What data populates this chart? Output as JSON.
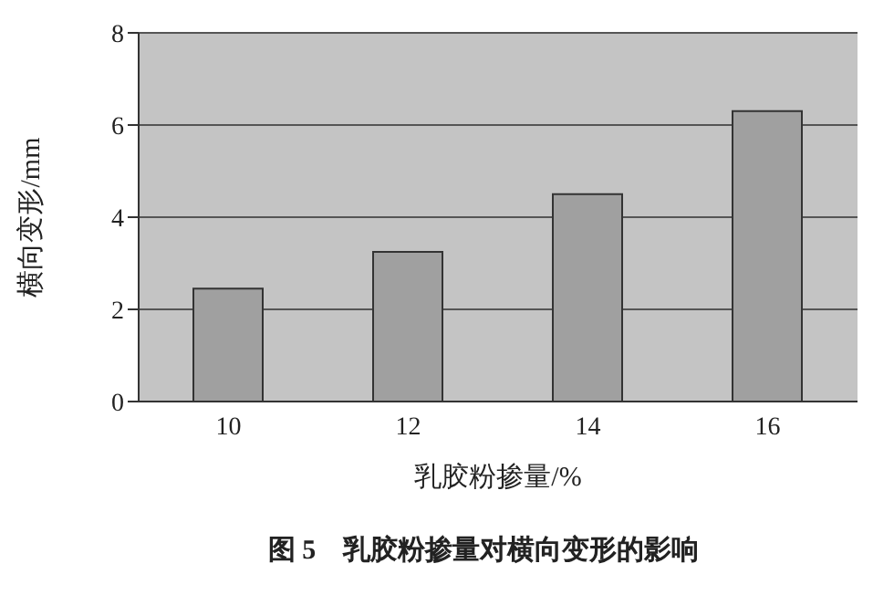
{
  "chart_data": {
    "type": "bar",
    "title": "图 5　乳胶粉掺量对横向变形的影响",
    "xlabel": "乳胶粉掺量/%",
    "ylabel": "横向变形/mm",
    "categories": [
      "10",
      "12",
      "14",
      "16"
    ],
    "values": [
      2.45,
      3.25,
      4.5,
      6.3
    ],
    "color": "#a0a0a0",
    "ylim": [
      0,
      8
    ],
    "yticks": [
      0,
      2,
      4,
      6,
      8
    ],
    "grid": "y"
  }
}
